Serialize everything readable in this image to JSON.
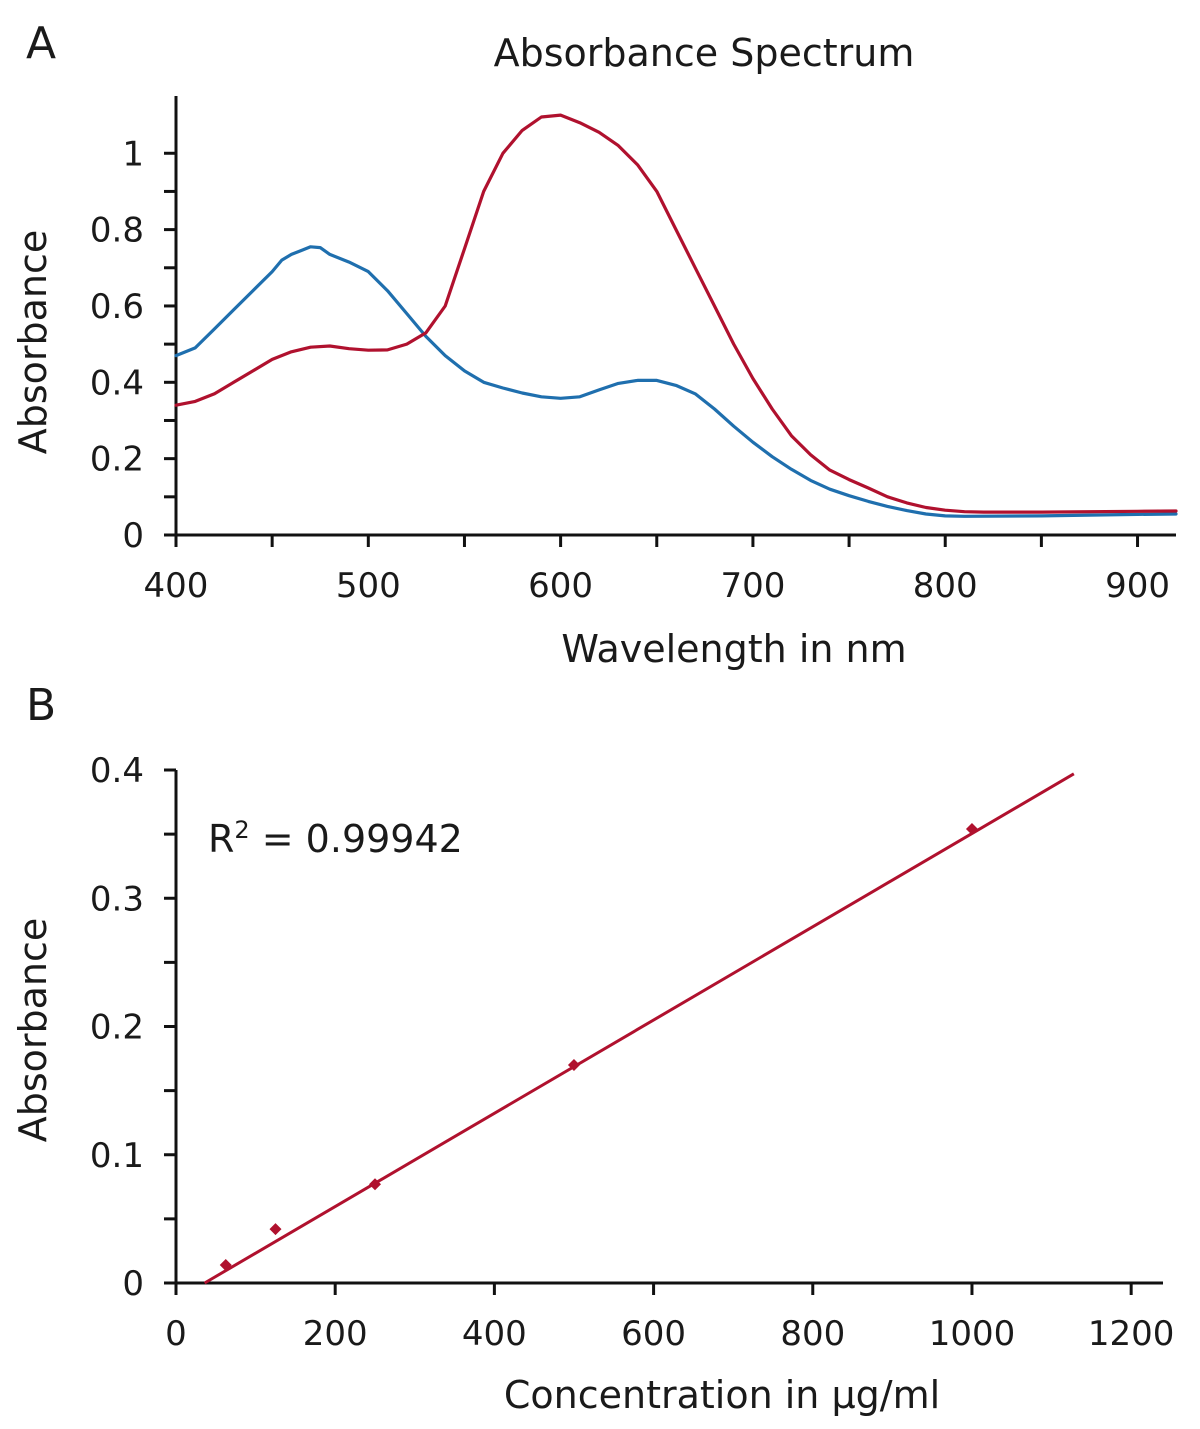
{
  "colors": {
    "blue": "#1f6fae",
    "red": "#b0112e",
    "axis": "#111111"
  },
  "chart_data": [
    {
      "panel": "A",
      "type": "line",
      "title": "Absorbance Spectrum",
      "xlabel": "Wavelength in nm",
      "ylabel": "Absorbance",
      "xlim": [
        400,
        920
      ],
      "ylim": [
        0,
        1.15
      ],
      "x_ticks": [
        400,
        500,
        600,
        700,
        800,
        900
      ],
      "x_tick_labels": [
        "400",
        "500",
        "600",
        "700",
        "800",
        "900"
      ],
      "x_minor_ticks": [
        450,
        550,
        650,
        750,
        850
      ],
      "y_ticks": [
        0,
        0.2,
        0.4,
        0.6,
        0.8,
        1
      ],
      "y_tick_labels": [
        "0",
        "0.2",
        "0.4",
        "0.6",
        "0.8",
        "1"
      ],
      "y_minor_ticks": [
        0.1,
        0.3,
        0.5,
        0.7,
        0.9
      ],
      "grid": false,
      "series": [
        {
          "color": "#1f6fae",
          "points": [
            [
              400,
              0.47
            ],
            [
              410,
              0.49
            ],
            [
              420,
              0.54
            ],
            [
              430,
              0.59
            ],
            [
              440,
              0.64
            ],
            [
              450,
              0.69
            ],
            [
              455,
              0.72
            ],
            [
              460,
              0.735
            ],
            [
              465,
              0.745
            ],
            [
              470,
              0.755
            ],
            [
              475,
              0.753
            ],
            [
              480,
              0.735
            ],
            [
              490,
              0.715
            ],
            [
              500,
              0.69
            ],
            [
              510,
              0.64
            ],
            [
              520,
              0.58
            ],
            [
              530,
              0.52
            ],
            [
              540,
              0.47
            ],
            [
              550,
              0.43
            ],
            [
              560,
              0.4
            ],
            [
              570,
              0.385
            ],
            [
              580,
              0.372
            ],
            [
              590,
              0.362
            ],
            [
              600,
              0.358
            ],
            [
              610,
              0.362
            ],
            [
              620,
              0.38
            ],
            [
              630,
              0.397
            ],
            [
              640,
              0.405
            ],
            [
              650,
              0.405
            ],
            [
              660,
              0.392
            ],
            [
              670,
              0.37
            ],
            [
              680,
              0.33
            ],
            [
              690,
              0.285
            ],
            [
              700,
              0.243
            ],
            [
              710,
              0.205
            ],
            [
              720,
              0.172
            ],
            [
              730,
              0.143
            ],
            [
              740,
              0.12
            ],
            [
              750,
              0.103
            ],
            [
              760,
              0.088
            ],
            [
              770,
              0.075
            ],
            [
              780,
              0.064
            ],
            [
              790,
              0.055
            ],
            [
              800,
              0.05
            ],
            [
              810,
              0.049
            ],
            [
              850,
              0.05
            ],
            [
              900,
              0.054
            ],
            [
              920,
              0.055
            ]
          ]
        },
        {
          "color": "#b0112e",
          "points": [
            [
              400,
              0.34
            ],
            [
              410,
              0.35
            ],
            [
              420,
              0.37
            ],
            [
              430,
              0.4
            ],
            [
              440,
              0.43
            ],
            [
              450,
              0.46
            ],
            [
              460,
              0.48
            ],
            [
              470,
              0.492
            ],
            [
              480,
              0.495
            ],
            [
              490,
              0.488
            ],
            [
              500,
              0.484
            ],
            [
              510,
              0.485
            ],
            [
              520,
              0.5
            ],
            [
              530,
              0.53
            ],
            [
              540,
              0.6
            ],
            [
              550,
              0.75
            ],
            [
              560,
              0.9
            ],
            [
              570,
              1.0
            ],
            [
              580,
              1.06
            ],
            [
              590,
              1.095
            ],
            [
              600,
              1.1
            ],
            [
              610,
              1.08
            ],
            [
              620,
              1.055
            ],
            [
              630,
              1.02
            ],
            [
              640,
              0.97
            ],
            [
              650,
              0.9
            ],
            [
              660,
              0.8
            ],
            [
              670,
              0.7
            ],
            [
              680,
              0.6
            ],
            [
              690,
              0.5
            ],
            [
              700,
              0.41
            ],
            [
              710,
              0.33
            ],
            [
              720,
              0.26
            ],
            [
              730,
              0.21
            ],
            [
              740,
              0.17
            ],
            [
              750,
              0.145
            ],
            [
              760,
              0.123
            ],
            [
              770,
              0.1
            ],
            [
              780,
              0.084
            ],
            [
              790,
              0.072
            ],
            [
              800,
              0.065
            ],
            [
              810,
              0.061
            ],
            [
              820,
              0.06
            ],
            [
              850,
              0.06
            ],
            [
              900,
              0.062
            ],
            [
              920,
              0.063
            ]
          ]
        }
      ]
    },
    {
      "panel": "B",
      "type": "scatter",
      "title": "",
      "xlabel": "Concentration in µg/ml",
      "ylabel": "Absorbance",
      "xlim": [
        0,
        1240
      ],
      "ylim": [
        0,
        0.4
      ],
      "x_ticks": [
        0,
        200,
        400,
        600,
        800,
        1000,
        1200
      ],
      "x_tick_labels": [
        "0",
        "200",
        "400",
        "600",
        "800",
        "1000",
        "1200"
      ],
      "x_minor_ticks": [],
      "y_ticks": [
        0,
        0.1,
        0.2,
        0.3,
        0.4
      ],
      "y_tick_labels": [
        "0",
        "0.1",
        "0.2",
        "0.3",
        "0.4"
      ],
      "y_minor_ticks": [
        0.05,
        0.15,
        0.25,
        0.35
      ],
      "grid": false,
      "points": [
        [
          62.5,
          0.014
        ],
        [
          125,
          0.042
        ],
        [
          250,
          0.077
        ],
        [
          500,
          0.17
        ],
        [
          1000,
          0.354
        ]
      ],
      "trendline": {
        "from": [
          36,
          0.0
        ],
        "to": [
          1128,
          0.397
        ]
      },
      "annotation": {
        "prefix": "R",
        "sup": "2",
        "suffix": " = 0.99942"
      },
      "color": "#b0112e"
    }
  ]
}
